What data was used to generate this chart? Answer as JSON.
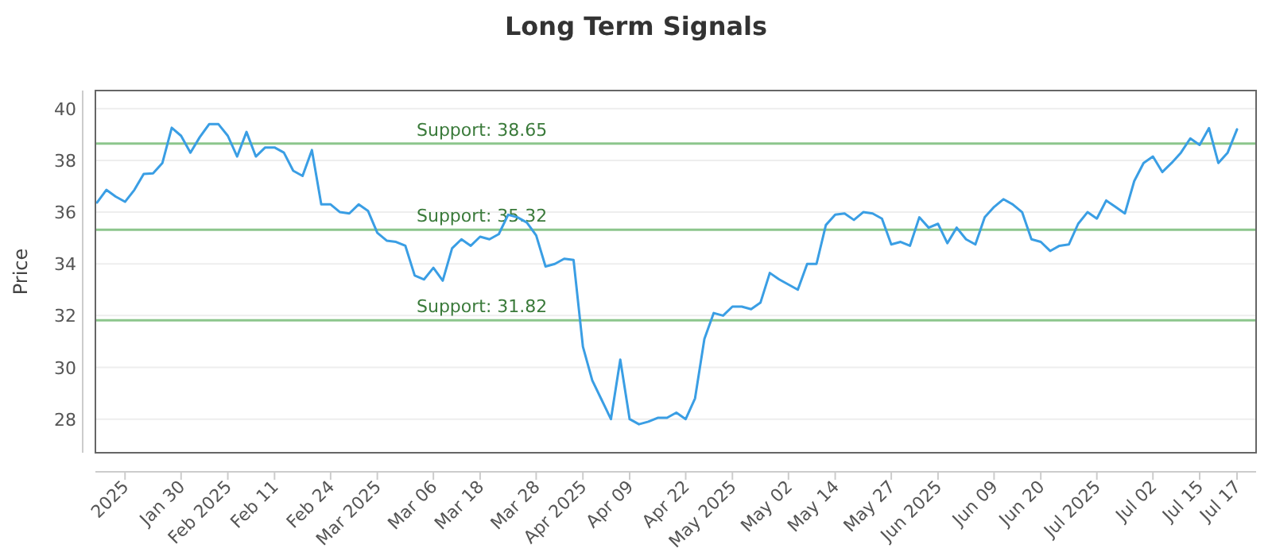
{
  "chart_data": {
    "type": "line",
    "title": "Long Term Signals",
    "ylabel": "Price",
    "categories": [
      null,
      null,
      null,
      "2025",
      null,
      null,
      null,
      null,
      null,
      "Jan 30",
      null,
      null,
      null,
      null,
      "Feb 2025",
      null,
      null,
      null,
      null,
      "Feb 11",
      null,
      null,
      null,
      null,
      null,
      "Feb 24",
      null,
      null,
      null,
      null,
      "Mar 2025",
      null,
      null,
      null,
      null,
      null,
      "Mar 06",
      null,
      null,
      null,
      null,
      "Mar 18",
      null,
      null,
      null,
      null,
      null,
      "Mar 28",
      null,
      null,
      null,
      null,
      "Apr 2025",
      null,
      null,
      null,
      null,
      "Apr 09",
      null,
      null,
      null,
      null,
      null,
      "Apr 22",
      null,
      null,
      null,
      null,
      "May 2025",
      null,
      null,
      null,
      null,
      null,
      "May 02",
      null,
      null,
      null,
      null,
      "May 14",
      null,
      null,
      null,
      null,
      null,
      "May 27",
      null,
      null,
      null,
      null,
      "Jun 2025",
      null,
      null,
      null,
      null,
      null,
      "Jun 09",
      null,
      null,
      null,
      null,
      "Jun 20",
      null,
      null,
      null,
      null,
      null,
      "Jul 2025",
      null,
      null,
      null,
      null,
      null,
      "Jul 02",
      null,
      null,
      null,
      null,
      "Jul 15",
      null,
      null,
      null,
      "Jul 17"
    ],
    "series": [
      {
        "color": "#3a9ee4",
        "values": [
          36.37,
          36.86,
          36.6,
          36.4,
          36.86,
          37.48,
          37.5,
          37.9,
          39.26,
          38.95,
          38.3,
          38.9,
          39.4,
          39.4,
          38.95,
          38.15,
          39.1,
          38.15,
          38.5,
          38.5,
          38.3,
          37.6,
          37.4,
          38.4,
          36.3,
          36.3,
          36.0,
          35.95,
          36.3,
          36.05,
          35.2,
          34.9,
          34.85,
          34.7,
          33.55,
          33.4,
          33.85,
          33.35,
          34.6,
          34.95,
          34.7,
          35.05,
          34.95,
          35.15,
          35.9,
          35.8,
          35.6,
          35.1,
          33.9,
          34.0,
          34.2,
          34.15,
          30.8,
          29.5,
          28.75,
          28.0,
          30.3,
          28.0,
          27.8,
          27.9,
          28.05,
          28.05,
          28.25,
          28.0,
          28.8,
          31.1,
          32.1,
          32.0,
          32.35,
          32.35,
          32.25,
          32.5,
          33.65,
          33.4,
          33.2,
          33.0,
          34.0,
          34.0,
          35.5,
          35.9,
          35.95,
          35.7,
          36.0,
          35.95,
          35.75,
          34.75,
          34.85,
          34.7,
          35.8,
          35.4,
          35.55,
          34.8,
          35.4,
          34.95,
          34.75,
          35.8,
          36.2,
          36.5,
          36.3,
          36.0,
          34.95,
          34.85,
          34.5,
          34.7,
          34.75,
          35.55,
          36.0,
          35.75,
          36.45,
          36.2,
          35.95,
          37.2,
          37.9,
          38.15,
          37.55,
          37.9,
          38.3,
          38.85,
          38.6,
          39.25,
          37.9,
          38.3,
          39.2
        ]
      }
    ],
    "ylim": [
      26.7,
      40.7
    ],
    "yticks": [
      28,
      30,
      32,
      34,
      36,
      38,
      40
    ],
    "grid": "y",
    "line_style": "solid",
    "ref_lines": [
      {
        "axis": "y",
        "value": 38.65,
        "label": "Support: 38.65",
        "color": "#8cc68c"
      },
      {
        "axis": "y",
        "value": 35.32,
        "label": "Support: 35.32",
        "color": "#8cc68c"
      },
      {
        "axis": "y",
        "value": 31.82,
        "label": "Support: 31.82",
        "color": "#8cc68c"
      }
    ]
  }
}
